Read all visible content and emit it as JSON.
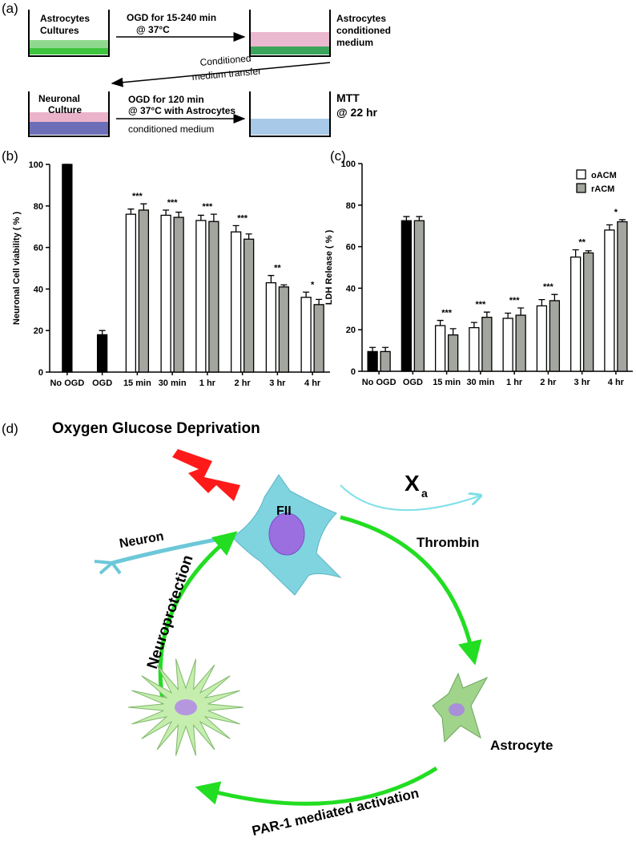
{
  "panel_a": {
    "label": "(a)",
    "dish1": [
      "Astrocytes",
      "Cultures"
    ],
    "arrow1": [
      "OGD for 15-240 min",
      "@ 37°C"
    ],
    "dish2": [
      "Astrocytes",
      "conditioned",
      "medium"
    ],
    "transfer": [
      "Conditioned",
      "medium transfer"
    ],
    "dish3": [
      "Neuronal",
      "Culture"
    ],
    "arrow2": [
      "OGD for 120 min",
      "@ 37°C with Astrocytes",
      "conditioned medium"
    ],
    "dish4": [
      "MTT",
      "@ 22 hr"
    ]
  },
  "panel_b": {
    "label": "(b)"
  },
  "panel_c": {
    "label": "(c)"
  },
  "panel_d": {
    "label": "(d)",
    "stress": "Oxygen  Glucose Deprivation",
    "fii": "FII",
    "neuron": "Neuron",
    "xa": "X",
    "xa_sub": "a",
    "thrombin": "Thrombin",
    "neuroprotection": "Neuroprotection",
    "astrocyte": "Astrocyte",
    "par1": "PAR-1 mediated activation"
  },
  "chart_data": [
    {
      "type": "bar",
      "ylabel": "Neuronal Cell viability ( % )",
      "categories": [
        "No OGD",
        "OGD",
        "15 min",
        "30 min",
        "1 hr",
        "2 hr",
        "3 hr",
        "4 hr"
      ],
      "series": [
        {
          "color": "#000000",
          "values": [
            100,
            18,
            null,
            null,
            null,
            null,
            null,
            null
          ],
          "errors": [
            0,
            2,
            null,
            null,
            null,
            null,
            null,
            null
          ]
        },
        {
          "color": "#ffffff",
          "values": [
            null,
            null,
            76,
            75.5,
            73,
            67.5,
            43,
            36
          ],
          "errors": [
            null,
            null,
            2.5,
            2.5,
            2.5,
            3,
            3.5,
            2.5
          ]
        },
        {
          "color": "#a3a69e",
          "values": [
            null,
            null,
            78,
            74.5,
            72.5,
            64,
            41,
            32.5
          ],
          "errors": [
            null,
            null,
            3,
            2.5,
            3.5,
            2.5,
            1,
            2.5
          ]
        }
      ],
      "annotations": [
        null,
        null,
        "***",
        "***",
        "***",
        "***",
        "**",
        "*"
      ],
      "ylim": [
        0,
        100
      ],
      "yticks": [
        0,
        20,
        40,
        60,
        80,
        100
      ]
    },
    {
      "type": "bar",
      "ylabel": "LDH Release ( % )",
      "categories": [
        "No OGD",
        "OGD",
        "15 min",
        "30 min",
        "1 hr",
        "2 hr",
        "3 hr",
        "4 hr"
      ],
      "series": [
        {
          "color": "#000000",
          "values": [
            9.5,
            72.5,
            null,
            null,
            null,
            null,
            null,
            null
          ],
          "errors": [
            2,
            2,
            null,
            null,
            null,
            null,
            null,
            null
          ]
        },
        {
          "name": "oACM",
          "color": "#ffffff",
          "values": [
            null,
            null,
            22,
            21,
            25.5,
            31.5,
            55,
            68
          ],
          "errors": [
            null,
            null,
            2.5,
            2.5,
            2.5,
            3,
            3.5,
            2.5
          ]
        },
        {
          "name": "rACM",
          "color": "#a3a69e",
          "values": [
            9.5,
            72.5,
            17.5,
            26,
            27,
            34,
            57,
            72
          ],
          "errors": [
            2,
            2,
            3,
            2.5,
            3.5,
            3,
            1,
            1
          ]
        }
      ],
      "annotations": [
        null,
        null,
        "***",
        "***",
        "***",
        "***",
        "**",
        "*"
      ],
      "ylim": [
        0,
        100
      ],
      "yticks": [
        0,
        20,
        40,
        60,
        80,
        100
      ],
      "legend": "top-right"
    }
  ]
}
